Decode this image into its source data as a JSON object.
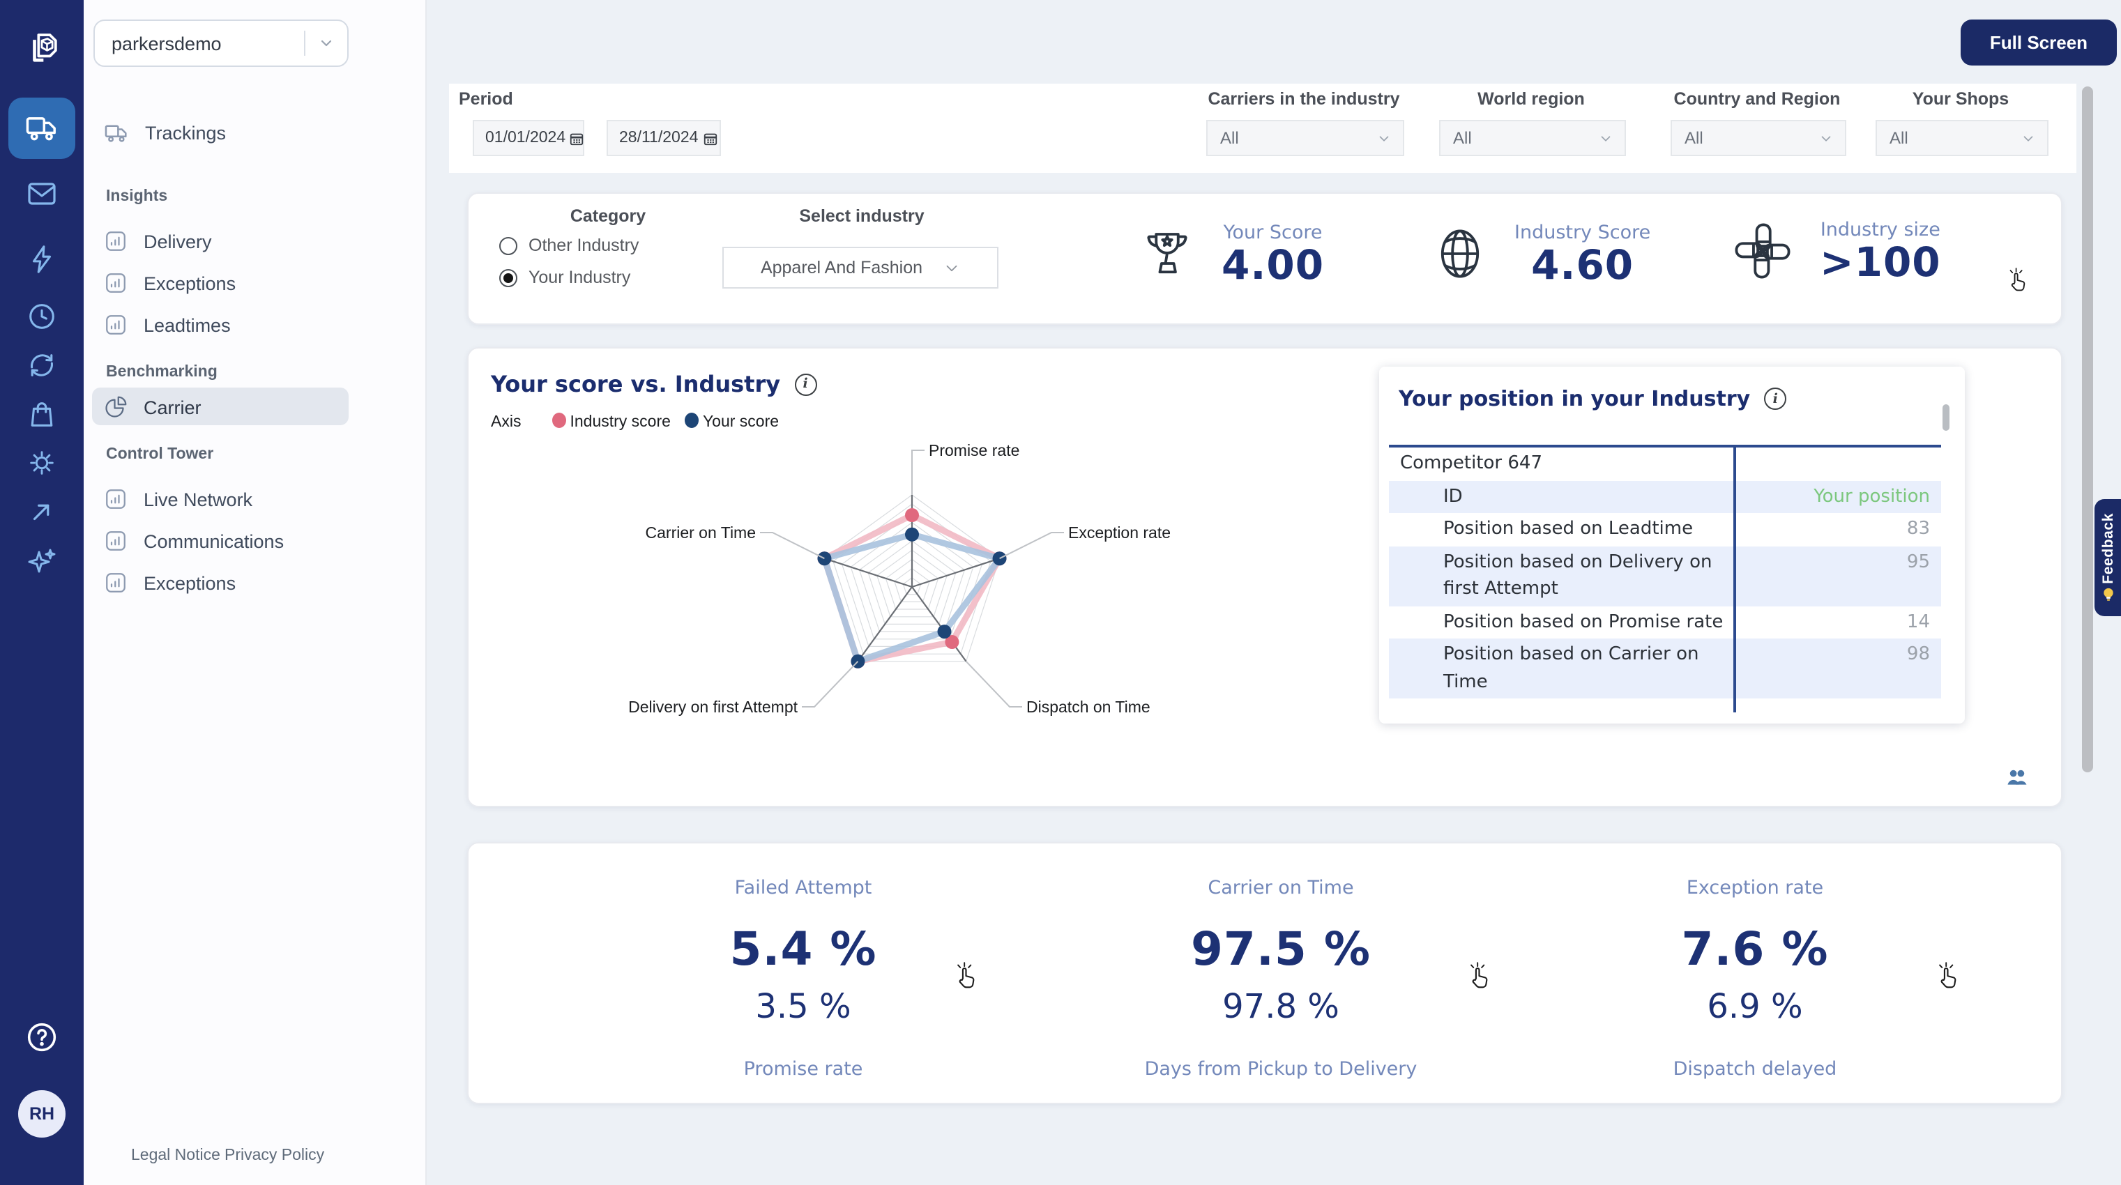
{
  "sidebar": {
    "workspace": {
      "value": "parkersdemo"
    },
    "menu": {
      "trackings": {
        "label": "Trackings"
      },
      "sections": [
        {
          "title": "Insights",
          "items": [
            {
              "label": "Delivery"
            },
            {
              "label": "Exceptions"
            },
            {
              "label": "Leadtimes"
            }
          ]
        },
        {
          "title": "Benchmarking",
          "items": [
            {
              "label": "Carrier",
              "active": true
            }
          ]
        },
        {
          "title": "Control Tower",
          "items": [
            {
              "label": "Live Network"
            },
            {
              "label": "Communications"
            },
            {
              "label": "Exceptions"
            }
          ]
        }
      ],
      "footer_links": [
        {
          "label": "Legal Notice"
        },
        {
          "label": "Privacy Policy"
        }
      ]
    },
    "avatar": {
      "initials": "RH"
    }
  },
  "topbar": {
    "fullscreen_label": "Full Screen"
  },
  "filters": {
    "period": {
      "label": "Period",
      "from": "01/01/2024",
      "to": "28/11/2024"
    },
    "selects": [
      {
        "label": "Carriers in the industry",
        "value": "All"
      },
      {
        "label": "World region",
        "value": "All"
      },
      {
        "label": "Country and Region",
        "value": "All"
      },
      {
        "label": "Your Shops",
        "value": "All"
      }
    ]
  },
  "summary": {
    "category": {
      "label": "Category",
      "options": [
        {
          "label": "Other Industry",
          "selected": false
        },
        {
          "label": "Your Industry",
          "selected": true
        }
      ]
    },
    "industry_select": {
      "label": "Select industry",
      "value": "Apparel And Fashion"
    },
    "stats": [
      {
        "icon": "trophy-icon",
        "label": "Your Score",
        "value": "4.00"
      },
      {
        "icon": "globe-icon",
        "label": "Industry Score",
        "value": "4.60"
      },
      {
        "icon": "team-hands-icon",
        "label": "Industry size",
        "value": ">100"
      }
    ]
  },
  "radar": {
    "title": "Your score vs. Industry",
    "axis_label": "Axis"
  },
  "position": {
    "title": "Your position in your Industry",
    "table": {
      "group_header": "Competitor 647",
      "rows": [
        {
          "label": "ID",
          "value": "Your position",
          "highlight": true,
          "value_green": true
        },
        {
          "label": "Position based on Leadtime",
          "value": "83",
          "highlight": false
        },
        {
          "label": "Position based on Delivery on first Attempt",
          "value": "95",
          "highlight": true
        },
        {
          "label": "Position based on Promise rate",
          "value": "14",
          "highlight": false
        },
        {
          "label": "Position based on Carrier on Time",
          "value": "98",
          "highlight": true
        }
      ]
    }
  },
  "metrics": {
    "items": [
      {
        "title": "Failed Attempt",
        "value": "5.4 %",
        "industry_value": "3.5 %",
        "next_label": "Promise rate"
      },
      {
        "title": "Carrier on Time",
        "value": "97.5 %",
        "industry_value": "97.8 %",
        "next_label": "Days from Pickup to Delivery"
      },
      {
        "title": "Exception rate",
        "value": "7.6 %",
        "industry_value": "6.9 %",
        "next_label": "Dispatch delayed"
      }
    ]
  },
  "feedback": {
    "label": "Feedback"
  },
  "colors": {
    "rail": "#1d2a6b",
    "rail_active_tile": "#2f6cb3",
    "navy_text": "#1b2d6e",
    "accent_navy_button": "#1b2a66",
    "label_blue": "#7388ba",
    "value_navy": "#1d3174",
    "green": "#7cc77e",
    "row_highlight": "#e9effc",
    "table_line": "#2c4a8e"
  },
  "chart_data": {
    "type": "radar",
    "title": "Your score vs. Industry",
    "categories": [
      "Promise rate",
      "Exception rate",
      "Dispatch on Time",
      "Delivery on first Attempt",
      "Carrier on Time"
    ],
    "series": [
      {
        "name": "Industry score",
        "dot_color": "#e0697e",
        "line_color": "#f2b9c4",
        "values_norm": [
          0.78,
          1.0,
          0.74,
          1.0,
          1.0
        ]
      },
      {
        "name": "Your score",
        "dot_color": "#1d4576",
        "line_color": "#a9c2de",
        "values_norm": [
          0.57,
          1.0,
          0.6,
          1.0,
          1.0
        ]
      }
    ],
    "rings": 10,
    "axis_max_norm": 1.0,
    "grid": true,
    "legend_position": "top-left"
  }
}
